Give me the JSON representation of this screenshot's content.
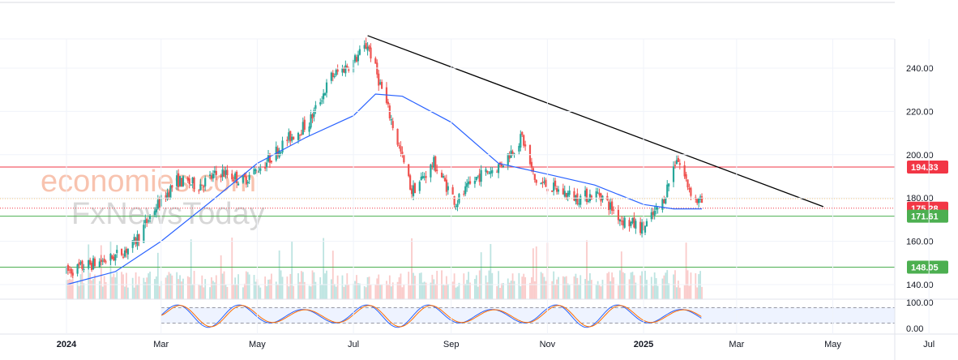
{
  "chart_data": {
    "type": "candlestick",
    "x_axis": {
      "labels": [
        {
          "text": "2024",
          "date": "2024-01-01",
          "bold": true
        },
        {
          "text": "Mar",
          "date": "2024-03-01"
        },
        {
          "text": "May",
          "date": "2024-05-01"
        },
        {
          "text": "Jul",
          "date": "2024-07-01"
        },
        {
          "text": "Sep",
          "date": "2024-09-01"
        },
        {
          "text": "Nov",
          "date": "2024-11-01"
        },
        {
          "text": "2025",
          "date": "2025-01-01",
          "bold": true
        },
        {
          "text": "Mar",
          "date": "2025-03-01"
        },
        {
          "text": "May",
          "date": "2025-05-01"
        },
        {
          "text": "Jul",
          "date": "2025-07-01"
        }
      ]
    },
    "price_axis": {
      "range": [
        132,
        260
      ],
      "ticks": [
        "140.00",
        "160.00",
        "180.00",
        "200.00",
        "220.00",
        "240.00"
      ]
    },
    "price_path": [
      [
        "2024-01-01",
        146
      ],
      [
        "2024-01-15",
        149
      ],
      [
        "2024-01-29",
        152
      ],
      [
        "2024-02-12",
        158
      ],
      [
        "2024-02-26",
        175
      ],
      [
        "2024-03-11",
        188
      ],
      [
        "2024-03-25",
        186
      ],
      [
        "2024-04-08",
        192
      ],
      [
        "2024-04-22",
        188
      ],
      [
        "2024-05-06",
        196
      ],
      [
        "2024-05-20",
        207
      ],
      [
        "2024-06-03",
        215
      ],
      [
        "2024-06-17",
        236
      ],
      [
        "2024-07-01",
        243
      ],
      [
        "2024-07-10",
        251
      ],
      [
        "2024-07-25",
        216
      ],
      [
        "2024-08-07",
        183
      ],
      [
        "2024-08-21",
        196
      ],
      [
        "2024-09-04",
        178
      ],
      [
        "2024-09-18",
        190
      ],
      [
        "2024-10-02",
        195
      ],
      [
        "2024-10-16",
        208
      ],
      [
        "2024-10-24",
        188
      ],
      [
        "2024-11-06",
        184
      ],
      [
        "2024-11-20",
        180
      ],
      [
        "2024-12-04",
        182
      ],
      [
        "2024-12-18",
        170
      ],
      [
        "2025-01-01",
        166
      ],
      [
        "2025-01-13",
        178
      ],
      [
        "2025-01-22",
        199
      ],
      [
        "2025-01-29",
        186
      ],
      [
        "2025-02-03",
        179
      ],
      [
        "2025-02-07",
        178
      ]
    ],
    "moving_average_path": [
      [
        "2024-01-01",
        140
      ],
      [
        "2024-02-01",
        146
      ],
      [
        "2024-03-01",
        160
      ],
      [
        "2024-04-01",
        178
      ],
      [
        "2024-05-01",
        196
      ],
      [
        "2024-06-01",
        208
      ],
      [
        "2024-07-01",
        218
      ],
      [
        "2024-07-15",
        228
      ],
      [
        "2024-08-01",
        227
      ],
      [
        "2024-09-01",
        215
      ],
      [
        "2024-10-01",
        196
      ],
      [
        "2024-11-01",
        191
      ],
      [
        "2024-12-01",
        186
      ],
      [
        "2025-01-01",
        177
      ],
      [
        "2025-01-20",
        175
      ],
      [
        "2025-02-07",
        175
      ]
    ],
    "horizontal_levels": [
      {
        "value": 194.33,
        "label": "194.33",
        "color": "#f23645",
        "style": "solid"
      },
      {
        "value": 179.8,
        "label": "",
        "color": "#ff9800",
        "style": "dotted"
      },
      {
        "value": 175.28,
        "label": "175.28",
        "color": "#f23645",
        "style": "dotted"
      },
      {
        "value": 171.61,
        "label": "171.61",
        "color": "#4caf50",
        "style": "solid"
      },
      {
        "value": 148.05,
        "label": "148.05",
        "color": "#4caf50",
        "style": "solid"
      }
    ],
    "trendline": {
      "from": [
        "2024-07-10",
        255
      ],
      "to": [
        "2025-04-25",
        176
      ],
      "color": "#000000"
    },
    "oscillator": {
      "range": [
        0,
        100
      ],
      "ticks": [
        "0.00",
        "100.00"
      ],
      "band": [
        20,
        80
      ],
      "start": "2024-03-01",
      "end": "2025-02-07"
    },
    "colors": {
      "up": "#26a69a",
      "down": "#ef5350",
      "ma": "#2962ff",
      "k": "#2962ff",
      "d": "#ff6d00"
    }
  },
  "watermark": {
    "line1": "economies.com",
    "line2": "FxNewsToday"
  }
}
